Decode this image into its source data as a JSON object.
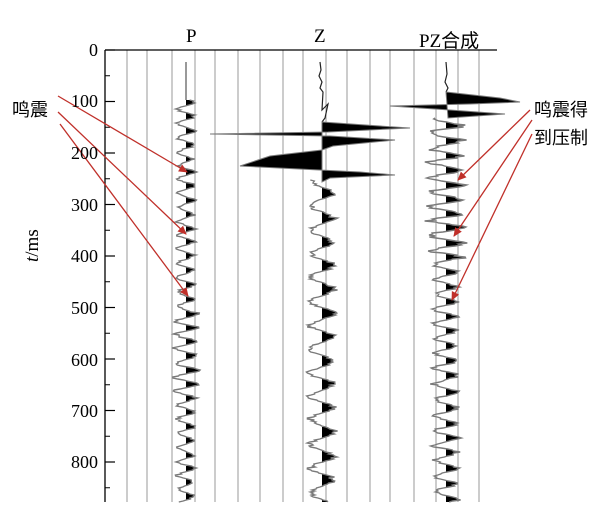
{
  "traces": [
    {
      "label": "P"
    },
    {
      "label": "Z"
    },
    {
      "label": "PZ合成"
    }
  ],
  "y_axis": {
    "label_italic": "t",
    "label_rest": "/ms",
    "ticks": [
      "0",
      "100",
      "200",
      "300",
      "400",
      "500",
      "600",
      "700",
      "800"
    ]
  },
  "annotations": {
    "left": "鸣震",
    "right_line1": "鸣震得",
    "right_line2": "到压制"
  },
  "colors": {
    "arrow": "#c0302a",
    "trace_line": "#7a7a7a",
    "trace_fill": "#000000",
    "grid": "#9a9a9a"
  }
}
